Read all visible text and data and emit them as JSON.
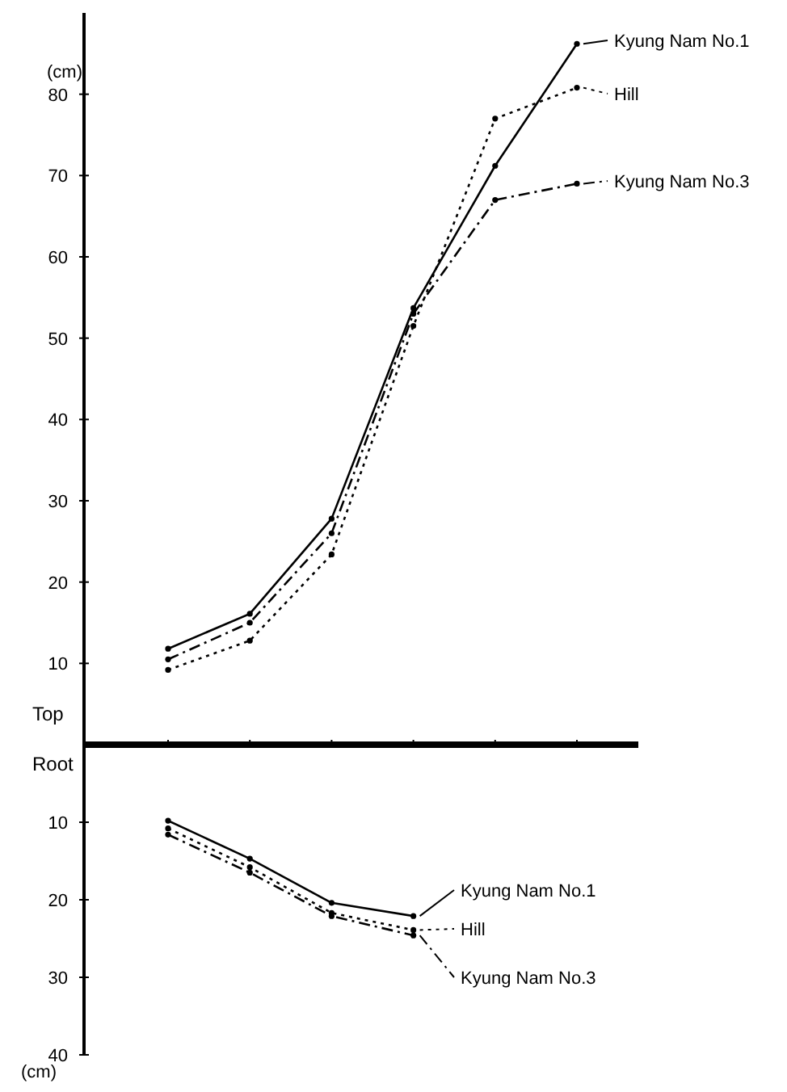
{
  "chart_data": [
    {
      "type": "line",
      "ylabel": "(cm)",
      "annotations": [
        "Top"
      ],
      "categories": [
        null,
        null,
        null,
        null,
        null,
        null
      ],
      "ylim": [
        0,
        90
      ],
      "yticks": [
        10,
        20,
        30,
        40,
        50,
        60,
        70,
        80
      ],
      "tick_labels": "y",
      "grid": false,
      "legend": "right",
      "marker": "circle",
      "series": [
        {
          "name": "Kyung Nam No.1",
          "color": "#000000",
          "line_style": "solid",
          "values": [
            11.8,
            16.1,
            27.8,
            53.7,
            71.2,
            86.2
          ]
        },
        {
          "name": "Hill",
          "color": "#000000",
          "line_style": "dotted",
          "values": [
            9.2,
            12.8,
            23.4,
            51.5,
            77,
            80.8
          ]
        },
        {
          "name": "Kyung Nam No.3",
          "color": "#000000",
          "line_style": "dashed",
          "values": [
            10.5,
            15,
            26,
            53,
            67,
            69
          ]
        }
      ]
    },
    {
      "type": "line",
      "ylabel": "(cm)",
      "annotations": [
        "Root"
      ],
      "categories": [
        null,
        null,
        null,
        null,
        null,
        null
      ],
      "ylim": [
        40,
        0
      ],
      "yticks": [
        10,
        20,
        30,
        40
      ],
      "tick_labels": "y",
      "grid": false,
      "legend": "right",
      "marker": "circle",
      "series": [
        {
          "name": "Kyung Nam No.1",
          "color": "#000000",
          "line_style": "solid",
          "values": [
            9.8,
            14.7,
            20.4,
            22.1,
            null,
            null
          ]
        },
        {
          "name": "Hill",
          "color": "#000000",
          "line_style": "dotted",
          "values": [
            10.8,
            15.8,
            21.7,
            23.9,
            null,
            null
          ]
        },
        {
          "name": "Kyung Nam No.3",
          "color": "#000000",
          "line_style": "dashed",
          "values": [
            11.6,
            16.5,
            22.1,
            24.6,
            null,
            null
          ]
        }
      ]
    }
  ]
}
